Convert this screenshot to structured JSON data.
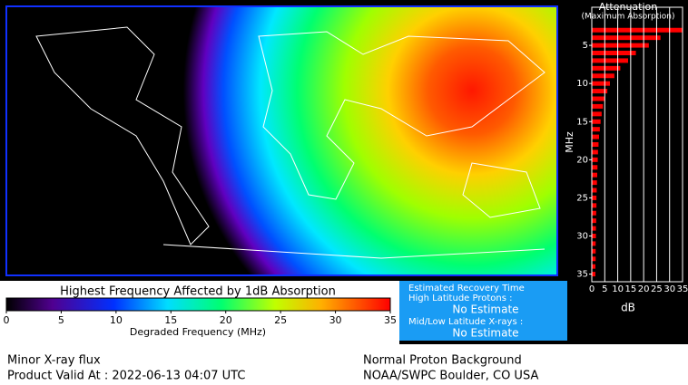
{
  "map": {
    "colorbar": {
      "title": "Highest Frequency Affected by 1dB Absorption",
      "label": "Degraded Frequency (MHz)",
      "lim": [
        0,
        35
      ],
      "ticks": [
        0,
        5,
        10,
        15,
        20,
        25,
        30,
        35
      ]
    }
  },
  "chart_data": {
    "type": "bar",
    "title": "Attenuation",
    "subtitle": "(Maximum Absorption)",
    "ylabel": "MHz",
    "xlabel": "dB",
    "y": [
      3,
      4,
      5,
      6,
      7,
      8,
      9,
      10,
      11,
      12,
      13,
      14,
      15,
      16,
      17,
      18,
      19,
      20,
      21,
      22,
      23,
      24,
      25,
      26,
      27,
      28,
      29,
      30,
      31,
      32,
      33,
      34,
      35
    ],
    "values": [
      35,
      26.5,
      22,
      17,
      14,
      11,
      8.7,
      7,
      6,
      5,
      4.3,
      3.8,
      3.4,
      3.1,
      2.8,
      2.6,
      2.4,
      2.3,
      2.2,
      2.1,
      2,
      1.9,
      1.8,
      1.8,
      1.7,
      1.7,
      1.6,
      1.6,
      1.5,
      1.5,
      1.5,
      1.4,
      1.4
    ],
    "color": "#ff0000",
    "xlim": [
      0,
      35
    ],
    "xticks": [
      0,
      5,
      10,
      15,
      20,
      25,
      30,
      35
    ],
    "ylim": [
      0,
      36
    ],
    "yticks": [
      5,
      10,
      15,
      20,
      25,
      30,
      35
    ],
    "grid": true
  },
  "recovery": {
    "title": "Estimated Recovery Time",
    "high_label": "High Latitude Protons :",
    "high_value": "No Estimate",
    "low_label": "Mid/Low Latitude X-rays :",
    "low_value": "No Estimate"
  },
  "footer": {
    "xray": "Minor X-ray flux",
    "valid": "Product Valid At : 2022-06-13 04:07 UTC",
    "proton": "Normal Proton Background",
    "source": "NOAA/SWPC Boulder, CO USA"
  }
}
